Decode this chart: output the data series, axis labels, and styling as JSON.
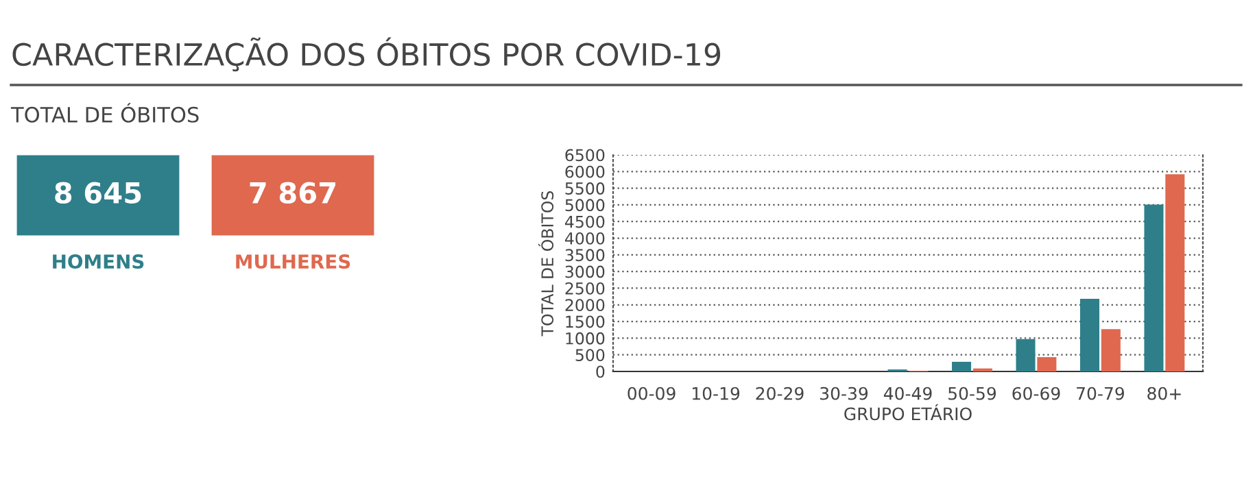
{
  "chart_data": [
    {
      "type": "other",
      "title": "CARACTERIZAÇÃO DOS ÓBITOS POR COVID-19",
      "subtitle": "TOTAL DE ÓBITOS",
      "categories": [
        "HOMENS",
        "MULHERES"
      ],
      "annotations": [
        "8 645",
        "7 867"
      ],
      "colors": [
        "#2e7f8a",
        "#df684f"
      ]
    },
    {
      "type": "bar",
      "xlabel": "GRUPO ETÁRIO",
      "ylabel": "TOTAL DE ÓBITOS",
      "categories": [
        "00-09",
        "10-19",
        "20-29",
        "30-39",
        "40-49",
        "50-59",
        "60-69",
        "70-79",
        "80+"
      ],
      "series": [
        {
          "color": "#2e7f8a",
          "values": [
            0,
            0,
            0,
            0,
            60,
            290,
            970,
            2180,
            5010
          ]
        },
        {
          "color": "#df684f",
          "values": [
            0,
            0,
            0,
            0,
            20,
            90,
            430,
            1270,
            5920
          ]
        }
      ],
      "ylim": [
        0,
        6500
      ],
      "yticks": [
        0,
        500,
        1000,
        1500,
        2000,
        2500,
        3000,
        3500,
        4000,
        4500,
        5000,
        5500,
        6000,
        6500
      ],
      "grid": "y"
    }
  ]
}
